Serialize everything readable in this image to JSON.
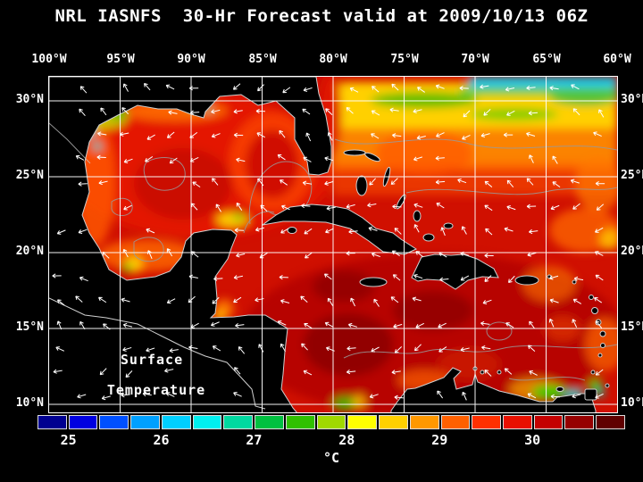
{
  "title": "NRL IASNFS  30-Hr Forecast valid at 2009/10/13 06Z",
  "axes": {
    "lon_labels": [
      "100°W",
      "95°W",
      "90°W",
      "85°W",
      "80°W",
      "75°W",
      "70°W",
      "65°W",
      "60°W"
    ],
    "lat_labels": [
      "30°N",
      "25°N",
      "20°N",
      "15°N",
      "10°N"
    ]
  },
  "map_annotation": {
    "line1": "Surface",
    "line2": "Temperature"
  },
  "colorbar": {
    "unit": "°C",
    "tick_labels": [
      "25",
      "26",
      "27",
      "28",
      "29",
      "30"
    ],
    "segments": [
      "#000090",
      "#0000E0",
      "#0050FF",
      "#00A0FF",
      "#00CFFF",
      "#00EFEF",
      "#00D9A0",
      "#00C040",
      "#30C000",
      "#A0D800",
      "#FFFF00",
      "#FFD000",
      "#FF9800",
      "#FF6000",
      "#FF3000",
      "#E81000",
      "#C40000",
      "#960000",
      "#600000"
    ]
  },
  "colors": {
    "background": "#000000",
    "text": "#ffffff",
    "grid_lines": "#ffffff",
    "land": "#000000",
    "coastline": "#d0d0d0",
    "contour_lines": "#9a9a9a",
    "sea_base": "#d01000",
    "wind_arrows": "#ffffff"
  }
}
